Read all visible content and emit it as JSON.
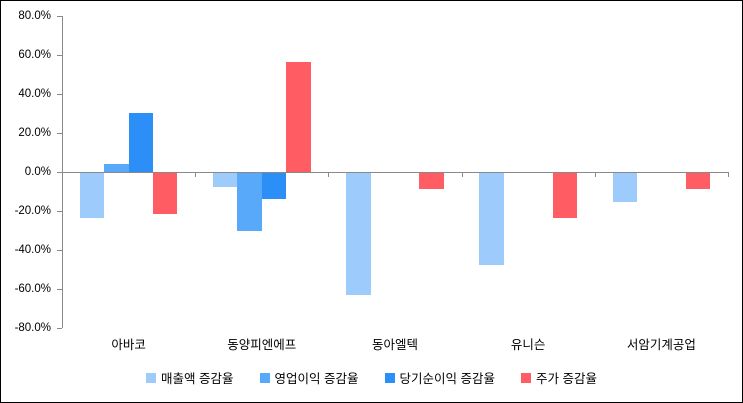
{
  "chart_data": {
    "type": "bar",
    "title": "",
    "xlabel": "",
    "ylabel": "",
    "categories": [
      "아바코",
      "동양피엔에프",
      "동아엘텍",
      "유니슨",
      "서암기계공업"
    ],
    "series": [
      {
        "name": "매출액 증감율",
        "color": "#9DCBFC",
        "values": [
          -23,
          -7,
          -62.5,
          -47,
          -15
        ]
      },
      {
        "name": "영업이익 증감율",
        "color": "#59A9FB",
        "values": [
          4,
          -29.5,
          null,
          null,
          null
        ]
      },
      {
        "name": "당기순이익 증감율",
        "color": "#2B8FF7",
        "values": [
          30.5,
          -13.5,
          null,
          null,
          null
        ]
      },
      {
        "name": "주가 증감율",
        "color": "#FF5C63",
        "values": [
          -21,
          56.5,
          -8,
          -23,
          -8
        ]
      }
    ],
    "ylim": [
      -80,
      80
    ],
    "y_ticks": [
      80,
      60,
      40,
      20,
      0,
      -20,
      -40,
      -60,
      -80
    ],
    "y_tick_labels": [
      "80.0%",
      "60.0%",
      "40.0%",
      "20.0%",
      "0.0%",
      "-20.0%",
      "-40.0%",
      "-60.0%",
      "-80.0%"
    ],
    "grid": false,
    "legend_position": "bottom",
    "axis_color": "#898989",
    "text_color": "#000000",
    "background_color": "#FFFFFF"
  }
}
